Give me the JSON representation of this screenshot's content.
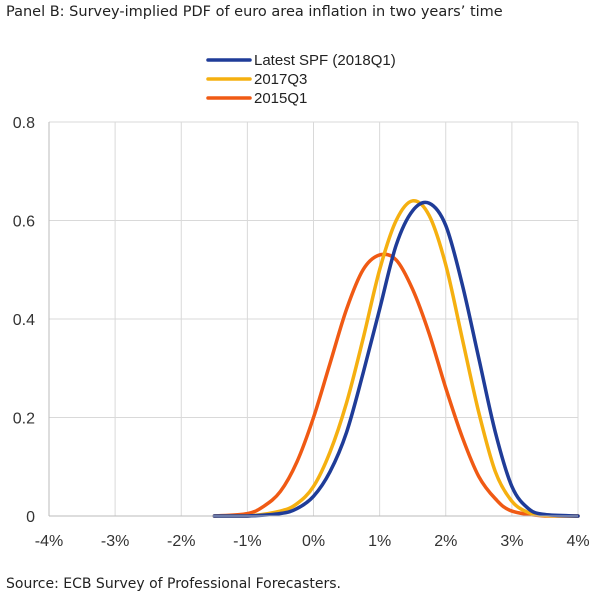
{
  "panel_title": "Panel B: Survey-implied PDF of euro area inflation in two years’ time",
  "source": "Source: ECB Survey of Professional Forecasters.",
  "chart_data": {
    "type": "line",
    "title": "",
    "xlabel": "",
    "ylabel": "",
    "xlim": [
      -4,
      4
    ],
    "ylim": [
      0,
      0.8
    ],
    "grid": true,
    "legend_position": "top-center",
    "x_tick_labels": [
      "-4%",
      "-3%",
      "-2%",
      "-1%",
      "0%",
      "1%",
      "2%",
      "3%",
      "4%"
    ],
    "x_ticks": [
      -4,
      -3,
      -2,
      -1,
      0,
      1,
      2,
      3,
      4
    ],
    "y_tick_labels": [
      "0",
      "0.2",
      "0.4",
      "0.6",
      "0.8"
    ],
    "y_ticks": [
      0,
      0.2,
      0.4,
      0.6,
      0.8
    ],
    "series": [
      {
        "name": "Latest SPF (2018Q1)",
        "color": "#1f3c98",
        "x": [
          -1.5,
          -1.0,
          -0.5,
          -0.25,
          0.0,
          0.25,
          0.5,
          0.75,
          1.0,
          1.25,
          1.5,
          1.75,
          2.0,
          2.25,
          2.5,
          2.75,
          3.0,
          3.25,
          3.5,
          4.0
        ],
        "y": [
          0.0,
          0.0,
          0.005,
          0.015,
          0.04,
          0.09,
          0.17,
          0.29,
          0.42,
          0.55,
          0.62,
          0.635,
          0.59,
          0.47,
          0.32,
          0.17,
          0.06,
          0.015,
          0.003,
          0.0
        ]
      },
      {
        "name": "2017Q3",
        "color": "#f5b010",
        "x": [
          -1.5,
          -1.0,
          -0.5,
          -0.25,
          0.0,
          0.25,
          0.5,
          0.75,
          1.0,
          1.25,
          1.5,
          1.75,
          2.0,
          2.25,
          2.5,
          2.75,
          3.0,
          3.25,
          3.5,
          4.0
        ],
        "y": [
          0.0,
          0.0,
          0.01,
          0.025,
          0.06,
          0.13,
          0.23,
          0.36,
          0.5,
          0.6,
          0.64,
          0.61,
          0.51,
          0.36,
          0.21,
          0.09,
          0.03,
          0.007,
          0.001,
          0.0
        ]
      },
      {
        "name": "2015Q1",
        "color": "#f05a14",
        "x": [
          -1.5,
          -1.0,
          -0.75,
          -0.5,
          -0.25,
          0.0,
          0.25,
          0.5,
          0.75,
          1.0,
          1.25,
          1.5,
          1.75,
          2.0,
          2.25,
          2.5,
          2.75,
          3.0,
          3.5,
          4.0
        ],
        "y": [
          0.0,
          0.005,
          0.02,
          0.05,
          0.11,
          0.2,
          0.31,
          0.42,
          0.5,
          0.53,
          0.52,
          0.46,
          0.37,
          0.26,
          0.16,
          0.08,
          0.035,
          0.01,
          0.0,
          0.0
        ]
      }
    ]
  }
}
